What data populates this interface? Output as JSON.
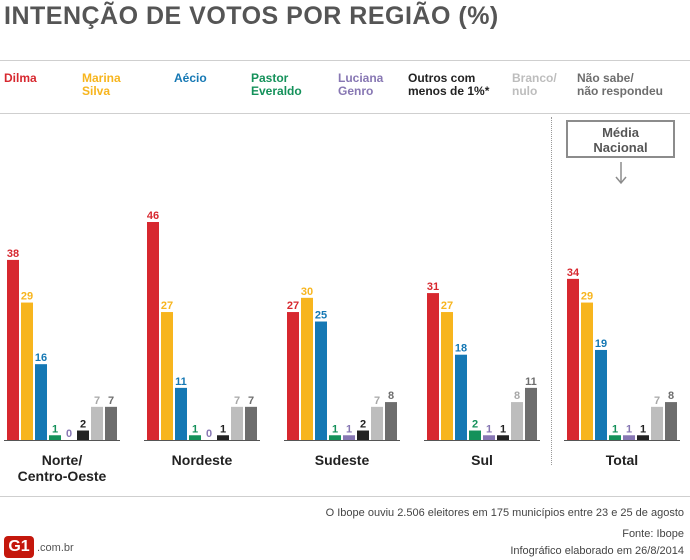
{
  "title": "INTENÇÃO DE VOTOS POR REGIÃO (%)",
  "legend": [
    {
      "label": "Dilma",
      "color": "#d7282f"
    },
    {
      "label": "Marina\nSilva",
      "color": "#f7b51e"
    },
    {
      "label": "Aécio",
      "color": "#1578b4"
    },
    {
      "label": "Pastor\nEveraldo",
      "color": "#14915a"
    },
    {
      "label": "Luciana\nGenro",
      "color": "#8777b3"
    },
    {
      "label": "Outros com\nmenos de 1%*",
      "color": "#222222"
    },
    {
      "label": "Branco/\nnulo",
      "color": "#bdbdbd"
    },
    {
      "label": "Não sabe/\nnão respondeu",
      "color": "#6e6e6e"
    }
  ],
  "media_nacional": {
    "line1": "Média",
    "line2": "Nacional"
  },
  "chart_data": {
    "type": "bar",
    "title": "INTENÇÃO DE VOTOS POR REGIÃO (%)",
    "categories": [
      "Norte/\nCentro-Oeste",
      "Nordeste",
      "Sudeste",
      "Sul",
      "Total"
    ],
    "ylim": [
      0,
      50
    ],
    "series": [
      {
        "name": "Dilma",
        "color": "#d7282f",
        "values": [
          38,
          46,
          27,
          31,
          34
        ]
      },
      {
        "name": "Marina Silva",
        "color": "#f7b51e",
        "values": [
          29,
          27,
          30,
          27,
          29
        ]
      },
      {
        "name": "Aécio",
        "color": "#1578b4",
        "values": [
          16,
          11,
          25,
          18,
          19
        ]
      },
      {
        "name": "Pastor Everaldo",
        "color": "#14915a",
        "values": [
          1,
          1,
          1,
          2,
          1
        ]
      },
      {
        "name": "Luciana Genro",
        "color": "#8777b3",
        "values": [
          0,
          0,
          1,
          1,
          1
        ]
      },
      {
        "name": "Outros com menos de 1%*",
        "color": "#222222",
        "values": [
          2,
          1,
          2,
          1,
          1
        ]
      },
      {
        "name": "Branco/nulo",
        "color": "#bdbdbd",
        "values": [
          7,
          7,
          7,
          8,
          7
        ]
      },
      {
        "name": "Não sabe/não respondeu",
        "color": "#6e6e6e",
        "values": [
          7,
          7,
          8,
          11,
          8
        ]
      }
    ]
  },
  "footer": {
    "note": "O Ibope ouviu 2.506 eleitores em 175 municípios entre 23 e 25 de agosto",
    "source": "Fonte: Ibope",
    "credit": "Infográfico elaborado em 26/8/2014",
    "logo": "G1",
    "logo_domain": ".com.br"
  }
}
